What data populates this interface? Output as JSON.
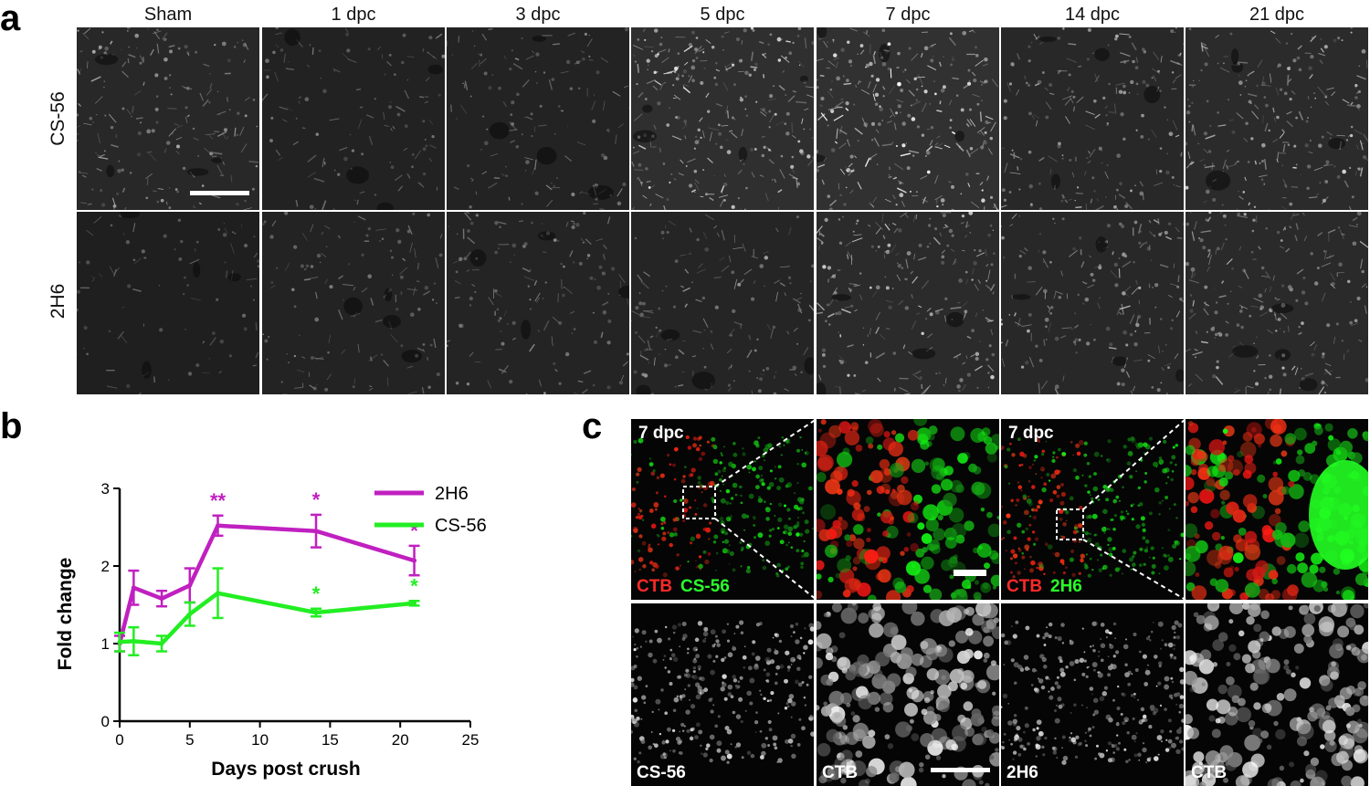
{
  "figure": {
    "panel_a": {
      "letter": "a",
      "columns": [
        "Sham",
        "1 dpc",
        "3 dpc",
        "5 dpc",
        "7 dpc",
        "14 dpc",
        "21 dpc"
      ],
      "rows": [
        "CS-56",
        "2H6"
      ],
      "brightness": [
        [
          0.55,
          0.25,
          0.3,
          0.85,
          0.95,
          0.55,
          0.7
        ],
        [
          0.12,
          0.3,
          0.35,
          0.4,
          0.7,
          0.55,
          0.65
        ]
      ]
    },
    "panel_b": {
      "letter": "b"
    },
    "panel_c": {
      "letter": "c",
      "top_tiles": [
        {
          "label_top": "7 dpc",
          "label_bottom_red": "CTB",
          "label_bottom_green": "CS-56"
        },
        {
          "label_top": "",
          "label_bottom_red": "",
          "label_bottom_green": ""
        },
        {
          "label_top": "7 dpc",
          "label_bottom_red": "CTB",
          "label_bottom_green": "2H6"
        },
        {
          "label_top": "",
          "label_bottom_red": "",
          "label_bottom_green": ""
        }
      ],
      "bottom_tiles": [
        "CS-56",
        "CTB",
        "2H6",
        "CTB"
      ]
    }
  },
  "chart_data": {
    "type": "line",
    "xlabel": "Days post crush",
    "ylabel": "Fold change",
    "xlim": [
      0,
      25
    ],
    "ylim": [
      0,
      3
    ],
    "xticks": [
      0,
      5,
      10,
      15,
      20,
      25
    ],
    "yticks": [
      0,
      1,
      2,
      3
    ],
    "grid": false,
    "legend_position": "top-right",
    "x": [
      0,
      1,
      3,
      5,
      7,
      14,
      21
    ],
    "series": [
      {
        "name": "2H6",
        "color": "#c020c0",
        "values": [
          1.0,
          1.72,
          1.58,
          1.75,
          2.52,
          2.45,
          2.07
        ],
        "errors": [
          0.1,
          0.22,
          0.1,
          0.22,
          0.13,
          0.21,
          0.19
        ],
        "annotations": [
          {
            "x": 7,
            "text": "**"
          },
          {
            "x": 14,
            "text": "*"
          },
          {
            "x": 21,
            "text": "*"
          }
        ]
      },
      {
        "name": "CS-56",
        "color": "#22ee22",
        "values": [
          1.02,
          1.03,
          1.0,
          1.38,
          1.65,
          1.4,
          1.52
        ],
        "errors": [
          0.12,
          0.18,
          0.1,
          0.15,
          0.32,
          0.05,
          0.03
        ],
        "annotations": [
          {
            "x": 14,
            "text": "*"
          },
          {
            "x": 21,
            "text": "*"
          }
        ]
      }
    ]
  }
}
